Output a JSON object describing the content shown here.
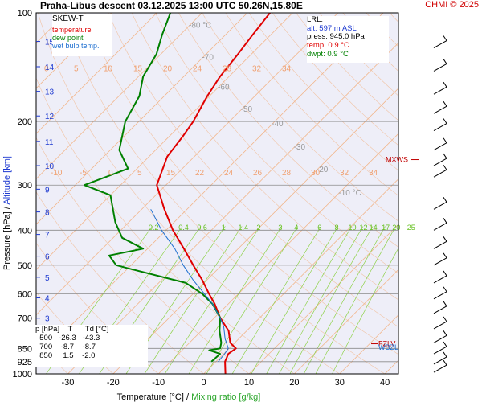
{
  "title": "Praha-Libus   descent  03.12.2025 13:00 UTC  50.26N,15.80E",
  "copyright": "CHMI © 2025",
  "legend": {
    "chart_type": "SKEW-T",
    "items": [
      {
        "label": "temperature",
        "color": "#e00000"
      },
      {
        "label": "dew point",
        "color": "#008000"
      },
      {
        "label": "wet bulb temp.",
        "color": "#1e6fd0"
      }
    ]
  },
  "lrl": {
    "title": "LRL:",
    "alt": "alt: 597 m ASL",
    "press": "press: 945.0 hPa",
    "temp": "temp: 0.9 °C",
    "dwpt": "dwpt: 0.9 °C"
  },
  "stats_table": {
    "header": "p [hPa]    T      Td [°C]",
    "rows": [
      "  500   -26.3   -43.3",
      "  700    -8.7    -8.7",
      "  850     1.5    -2.0"
    ]
  },
  "markers": {
    "mxws": "MXWS",
    "fzlv": "FZLV",
    "wbzl": "WBZL"
  },
  "colors": {
    "temperature": "#e00000",
    "dewpoint": "#008000",
    "wetbulb": "#1e6fd0",
    "isotherm": "#f2b58a",
    "mixing": "#8fd24a",
    "pressure_line": "#8a8a8a",
    "background": "#eeeef8"
  },
  "chart_data": {
    "type": "line",
    "chart_kind": "skew-T log-p",
    "xlabel": "Temperature [°C]",
    "xlabel_sep": "/",
    "xlabel2": "Mixing ratio [g/kg]",
    "ylabel": "Pressure [hPa]",
    "ylabel_sep": "/",
    "ylabel2": "Altitude [km]",
    "xlim": [
      -37,
      43
    ],
    "ylim": [
      1000,
      100
    ],
    "y_scale": "log",
    "x_ticks": [
      "-30",
      "-20",
      "-10",
      "0",
      "10",
      "20",
      "30",
      "40"
    ],
    "pressure_ticks": [
      "100",
      "200",
      "300",
      "400",
      "500",
      "600",
      "700",
      "850",
      "925",
      "1000"
    ],
    "pressure_values": [
      100,
      200,
      300,
      400,
      500,
      600,
      700,
      850,
      925,
      1000
    ],
    "altitude_ticks": [
      {
        "label": "15",
        "p": 120
      },
      {
        "label": "14",
        "p": 141
      },
      {
        "label": "13",
        "p": 165
      },
      {
        "label": "12",
        "p": 193
      },
      {
        "label": "11",
        "p": 227
      },
      {
        "label": "10",
        "p": 265
      },
      {
        "label": "9",
        "p": 308
      },
      {
        "label": "8",
        "p": 356
      },
      {
        "label": "7",
        "p": 411
      },
      {
        "label": "6",
        "p": 472
      },
      {
        "label": "5",
        "p": 540
      },
      {
        "label": "4",
        "p": 616
      },
      {
        "label": "3",
        "p": 701
      },
      {
        "label": "2",
        "p": 795
      },
      {
        "label": "1",
        "p": 899
      }
    ],
    "isotherm_labels": [
      {
        "label": "-80 °C",
        "p": 110
      },
      {
        "label": "-70",
        "p": 135
      },
      {
        "label": "-60",
        "p": 163
      },
      {
        "label": "-50",
        "p": 188
      },
      {
        "label": "-40",
        "p": 206
      },
      {
        "label": "-30",
        "p": 239
      },
      {
        "label": "-20",
        "p": 276
      },
      {
        "label": "-10 °C",
        "p": 320
      }
    ],
    "mixing_ratio_labels": [
      "0.2",
      "0.4",
      "0.6",
      "1",
      "1.4",
      "2",
      "3",
      "4",
      "6",
      "8",
      "10",
      "12",
      "14",
      "17",
      "20",
      "25"
    ],
    "theta_labels_200": [
      "0",
      "5",
      "10",
      "15",
      "20",
      "24",
      "28",
      "32",
      "34"
    ],
    "theta_labels_390": [
      "-10",
      "-5",
      "0",
      "5",
      "15",
      "22",
      "24",
      "26",
      "28",
      "30",
      "32",
      "34"
    ],
    "series": [
      {
        "name": "temperature",
        "points": [
          {
            "p": 1000,
            "t": 4.8
          },
          {
            "p": 925,
            "t": 2.0
          },
          {
            "p": 880,
            "t": 1.0
          },
          {
            "p": 850,
            "t": 1.5
          },
          {
            "p": 820,
            "t": -1.0
          },
          {
            "p": 760,
            "t": -4.0
          },
          {
            "p": 700,
            "t": -8.7
          },
          {
            "p": 640,
            "t": -13.0
          },
          {
            "p": 600,
            "t": -16.5
          },
          {
            "p": 550,
            "t": -21.0
          },
          {
            "p": 500,
            "t": -26.3
          },
          {
            "p": 450,
            "t": -32.0
          },
          {
            "p": 400,
            "t": -38.5
          },
          {
            "p": 350,
            "t": -45.0
          },
          {
            "p": 300,
            "t": -52.0
          },
          {
            "p": 250,
            "t": -56.0
          },
          {
            "p": 220,
            "t": -57.0
          },
          {
            "p": 200,
            "t": -58.0
          },
          {
            "p": 170,
            "t": -60.5
          },
          {
            "p": 150,
            "t": -62.0
          },
          {
            "p": 130,
            "t": -63.0
          },
          {
            "p": 115,
            "t": -64.0
          },
          {
            "p": 100,
            "t": -65.0
          }
        ]
      },
      {
        "name": "dew point",
        "points": [
          {
            "p": 925,
            "t": -1.0
          },
          {
            "p": 880,
            "t": -0.8
          },
          {
            "p": 860,
            "t": -4.0
          },
          {
            "p": 850,
            "t": -2.0
          },
          {
            "p": 820,
            "t": -3.0
          },
          {
            "p": 760,
            "t": -6.0
          },
          {
            "p": 700,
            "t": -8.7
          },
          {
            "p": 640,
            "t": -13.5
          },
          {
            "p": 600,
            "t": -18.0
          },
          {
            "p": 560,
            "t": -24.0
          },
          {
            "p": 510,
            "t": -40.0
          },
          {
            "p": 500,
            "t": -43.3
          },
          {
            "p": 470,
            "t": -47.0
          },
          {
            "p": 450,
            "t": -41.0
          },
          {
            "p": 420,
            "t": -48.0
          },
          {
            "p": 380,
            "t": -53.0
          },
          {
            "p": 320,
            "t": -60.0
          },
          {
            "p": 300,
            "t": -68.0
          },
          {
            "p": 270,
            "t": -62.0
          },
          {
            "p": 240,
            "t": -68.0
          },
          {
            "p": 200,
            "t": -73.0
          },
          {
            "p": 170,
            "t": -75.5
          },
          {
            "p": 150,
            "t": -79.0
          },
          {
            "p": 130,
            "t": -81.0
          },
          {
            "p": 115,
            "t": -84.0
          },
          {
            "p": 100,
            "t": -87.0
          }
        ]
      },
      {
        "name": "wet bulb temp.",
        "points": [
          {
            "p": 925,
            "t": 0.5
          },
          {
            "p": 880,
            "t": 0.2
          },
          {
            "p": 850,
            "t": -0.2
          },
          {
            "p": 800,
            "t": -3.0
          },
          {
            "p": 740,
            "t": -6.0
          },
          {
            "p": 700,
            "t": -8.7
          },
          {
            "p": 640,
            "t": -13.5
          },
          {
            "p": 600,
            "t": -17.5
          },
          {
            "p": 550,
            "t": -23.0
          },
          {
            "p": 500,
            "t": -28.5
          },
          {
            "p": 450,
            "t": -34.0
          },
          {
            "p": 400,
            "t": -41.0
          },
          {
            "p": 350,
            "t": -48.0
          }
        ]
      }
    ],
    "wind_barbs": [
      {
        "p": 125
      },
      {
        "p": 145
      },
      {
        "p": 168
      },
      {
        "p": 190
      },
      {
        "p": 212
      },
      {
        "p": 240
      },
      {
        "p": 265
      },
      {
        "p": 285
      },
      {
        "p": 350
      },
      {
        "p": 400
      },
      {
        "p": 450
      },
      {
        "p": 500
      },
      {
        "p": 560
      },
      {
        "p": 620
      },
      {
        "p": 680
      },
      {
        "p": 750
      },
      {
        "p": 820
      },
      {
        "p": 880
      },
      {
        "p": 940
      },
      {
        "p": 990
      }
    ]
  }
}
